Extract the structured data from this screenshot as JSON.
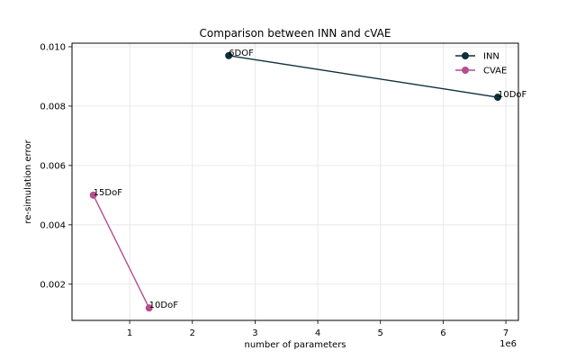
{
  "chart_data": {
    "type": "line",
    "title": "Comparison between INN and cVAE",
    "xlabel": "number of parameters",
    "ylabel": "re-simulation error",
    "x_offset_label": "1e6",
    "xlim": [
      80000,
      7200000
    ],
    "ylim": [
      0.00078,
      0.01012
    ],
    "x_ticks": [
      1000000,
      2000000,
      3000000,
      4000000,
      5000000,
      6000000,
      7000000
    ],
    "x_tick_labels": [
      "1",
      "2",
      "3",
      "4",
      "5",
      "6",
      "7"
    ],
    "y_ticks": [
      0.002,
      0.004,
      0.006,
      0.008,
      0.01
    ],
    "y_tick_labels": [
      "0.002",
      "0.004",
      "0.006",
      "0.008",
      "0.010"
    ],
    "grid": true,
    "legend_position": "top-right",
    "series": [
      {
        "name": "INN",
        "color": "#0f2f3a",
        "points": [
          {
            "x": 2580000,
            "y": 0.0097,
            "label": "6DOF"
          },
          {
            "x": 6870000,
            "y": 0.0083,
            "label": "10DoF"
          }
        ]
      },
      {
        "name": "CVAE",
        "color": "#b44e8c",
        "points": [
          {
            "x": 420000,
            "y": 0.005,
            "label": "15DoF"
          },
          {
            "x": 1310000,
            "y": 0.0012,
            "label": "10DoF"
          }
        ]
      }
    ]
  }
}
